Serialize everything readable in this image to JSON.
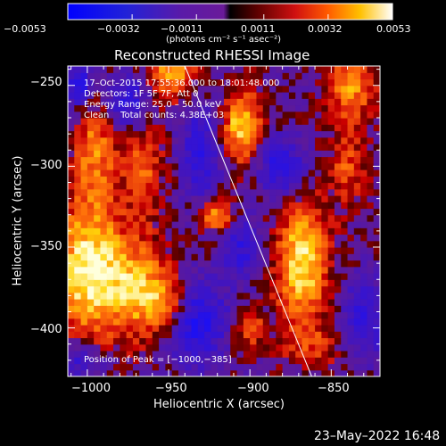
{
  "chart_data": {
    "type": "heatmap",
    "title": "Reconstructed RHESSI Image",
    "xlabel": "Heliocentric X (arcsec)",
    "ylabel": "Heliocentric Y (arcsec)",
    "x_ticks": [
      "−1000",
      "−950",
      "−900",
      "−850"
    ],
    "y_ticks": [
      "−250",
      "−300",
      "−350",
      "−400"
    ],
    "xlim": [
      -1012,
      -820
    ],
    "ylim": [
      -430,
      -238
    ],
    "colorbar": {
      "ticks": [
        "−0.0053",
        "−0.0032",
        "−0.0011",
        "0.0011",
        "0.0032",
        "0.0053"
      ],
      "unit_label": "(photons cm⁻² s⁻¹ asec⁻²)",
      "range": [
        -0.0053,
        0.0053
      ]
    },
    "annotations": {
      "time": "17–Oct–2015 17:55:36.000 to 18:01:48.000",
      "detectors": "Detectors: 1F 5F 7F, Att 0",
      "energy": "Energy Range: 25.0 – 50.0 keV",
      "method": "Clean    Total counts: 4.38E+03",
      "peak": "Position of Peak = [−1000,−385]"
    },
    "peak": {
      "x": -1000,
      "y": -385
    },
    "limb_line": [
      [
        -940,
        -238
      ],
      [
        -862,
        -430
      ]
    ],
    "grid": false
  },
  "footer": {
    "timestamp": "23–May–2022 16:48"
  }
}
